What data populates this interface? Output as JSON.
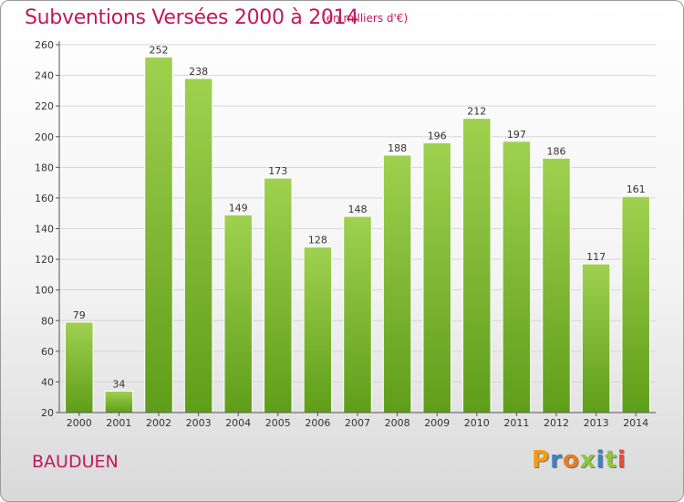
{
  "header": {
    "title": "Subventions Versées 2000 à 2014",
    "subtitle": "(en milliers d'€)"
  },
  "footer": {
    "commune": "BAUDUEN",
    "logo": "Proxiti"
  },
  "colors": {
    "title": "#c2185b",
    "bar_top": "#9fd14f",
    "bar_bottom": "#5f9e1a",
    "logo_letters": [
      "#f39c12",
      "#3b82c4",
      "#e67e22",
      "#8cc63f",
      "#3b82c4",
      "#8cc63f",
      "#e74c3c"
    ]
  },
  "chart_data": {
    "type": "bar",
    "title": "Subventions Versées 2000 à 2014",
    "subtitle": "(en milliers d'€)",
    "categories": [
      "2000",
      "2001",
      "2002",
      "2003",
      "2004",
      "2005",
      "2006",
      "2007",
      "2008",
      "2009",
      "2010",
      "2011",
      "2012",
      "2013",
      "2014"
    ],
    "values": [
      79,
      34,
      252,
      238,
      149,
      173,
      128,
      148,
      188,
      196,
      212,
      197,
      186,
      117,
      161
    ],
    "ylim": [
      20,
      260
    ],
    "yticks": [
      20,
      40,
      60,
      80,
      100,
      120,
      140,
      160,
      180,
      200,
      220,
      240,
      260
    ],
    "grid": true,
    "data_labels": true
  }
}
